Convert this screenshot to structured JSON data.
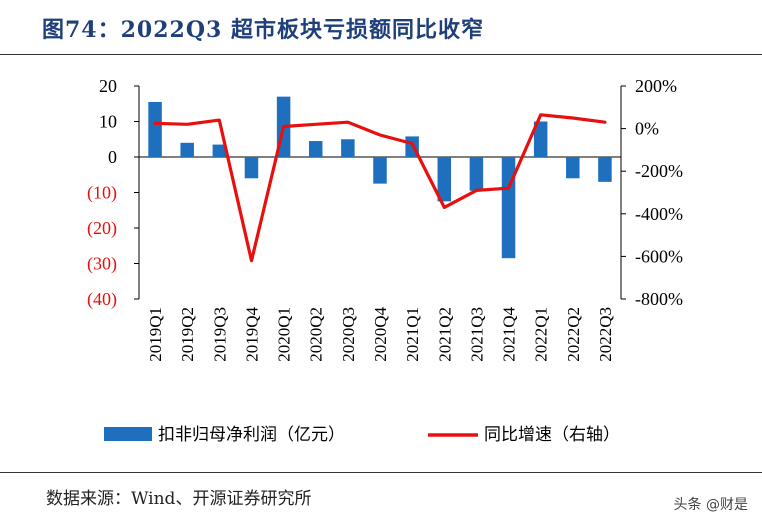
{
  "title": "图74：2022Q3 超市板块亏损额同比收窄",
  "source": "数据来源：Wind、开源证券研究所",
  "watermark": "头条 @财是",
  "chart_data": {
    "type": "bar",
    "categories": [
      "2019Q1",
      "2019Q2",
      "2019Q3",
      "2019Q4",
      "2020Q1",
      "2020Q2",
      "2020Q3",
      "2020Q4",
      "2021Q1",
      "2021Q2",
      "2021Q3",
      "2021Q4",
      "2022Q1",
      "2022Q2",
      "2022Q3"
    ],
    "series": [
      {
        "name": "扣非归母净利润（亿元）",
        "type": "bar",
        "axis": "left",
        "color": "#1f6fbf",
        "values": [
          15.5,
          4,
          3.5,
          -6,
          17,
          4.5,
          5,
          -7.5,
          5.8,
          -12.5,
          -9.5,
          -28.5,
          10,
          -6,
          -7
        ]
      },
      {
        "name": "同比增速（右轴）",
        "type": "line",
        "axis": "right",
        "color": "#e8100f",
        "values": [
          0.25,
          0.2,
          0.4,
          -6.2,
          0.1,
          0.2,
          0.3,
          -0.3,
          -0.7,
          -3.7,
          -2.9,
          -2.8,
          0.65,
          0.5,
          0.3
        ]
      }
    ],
    "left_axis": {
      "min": -40,
      "max": 20,
      "ticks": [
        20,
        10,
        0,
        -10,
        -20,
        -30,
        -40
      ],
      "tick_labels": [
        "20",
        "10",
        "0",
        "(10)",
        "(20)",
        "(30)",
        "(40)"
      ],
      "negative_color": "#e8100f"
    },
    "right_axis": {
      "min": -8,
      "max": 2,
      "ticks": [
        2,
        0,
        -2,
        -4,
        -6,
        -8
      ],
      "tick_labels": [
        "200%",
        "0%",
        "-200%",
        "-400%",
        "-600%",
        "-800%"
      ]
    }
  }
}
